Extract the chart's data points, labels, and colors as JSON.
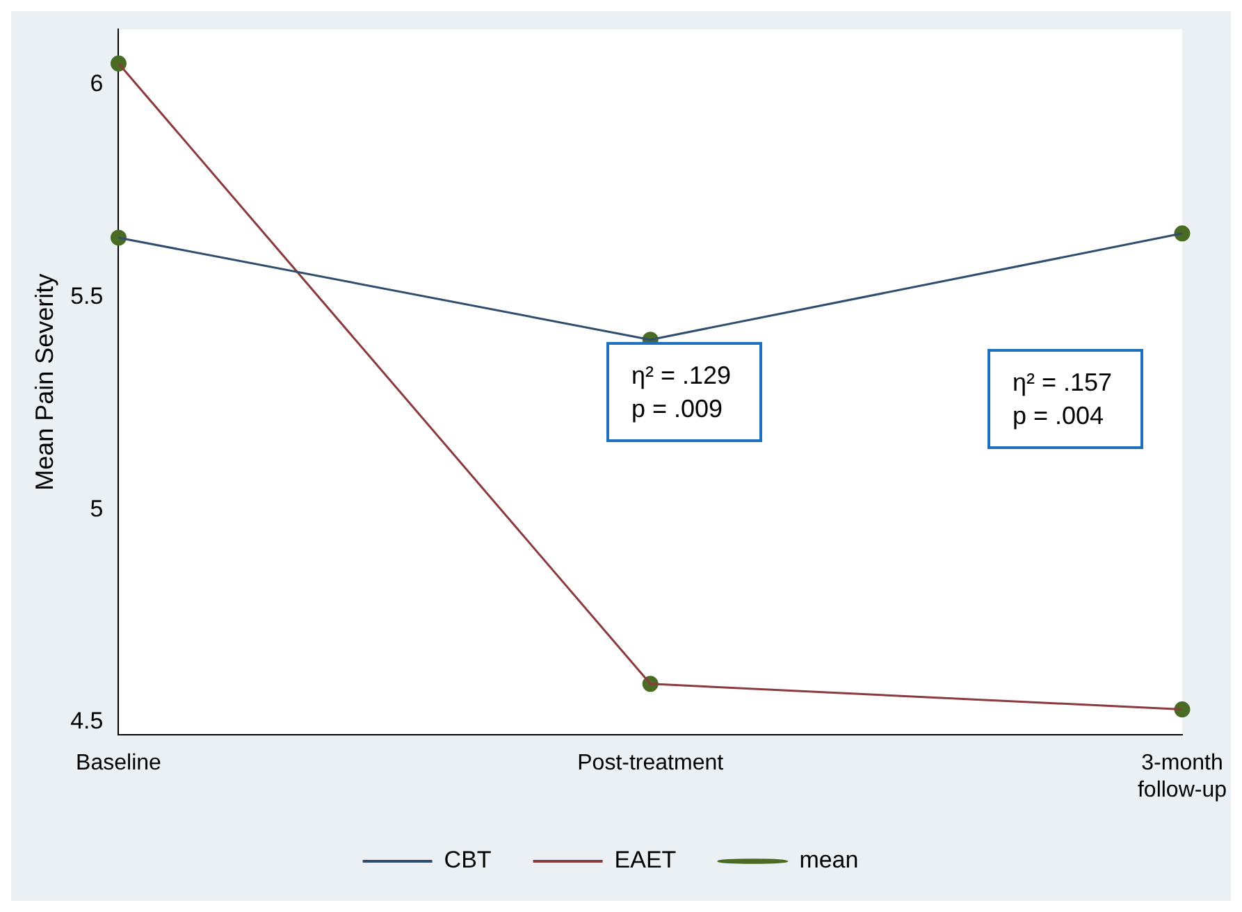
{
  "chart_data": {
    "type": "line",
    "ylabel": "Mean Pain Severity",
    "categories": [
      "Baseline",
      "Post-treatment",
      "3-month follow-up"
    ],
    "series": [
      {
        "name": "CBT",
        "type": "line",
        "color": "#2f4d6e",
        "marker": "none",
        "values": [
          5.64,
          5.4,
          5.65
        ]
      },
      {
        "name": "EAET",
        "type": "line",
        "color": "#8b3a3f",
        "marker": "none",
        "values": [
          6.05,
          4.59,
          4.53
        ]
      },
      {
        "name": "mean",
        "type": "scatter",
        "color": "#4a6b23",
        "marker": "circle",
        "x": [
          "Baseline",
          "Post-treatment",
          "3-month follow-up",
          "Baseline",
          "Post-treatment",
          "3-month follow-up"
        ],
        "values": [
          5.64,
          5.4,
          5.65,
          6.05,
          4.59,
          4.53
        ]
      }
    ],
    "ylim": [
      4.47,
      6.13
    ],
    "yticks": [
      4.5,
      5,
      5.5,
      6
    ],
    "grid": false,
    "legend": "bottom",
    "annotations": [
      "η² = .129\np = .009",
      "η² = .157\np = .004"
    ]
  }
}
